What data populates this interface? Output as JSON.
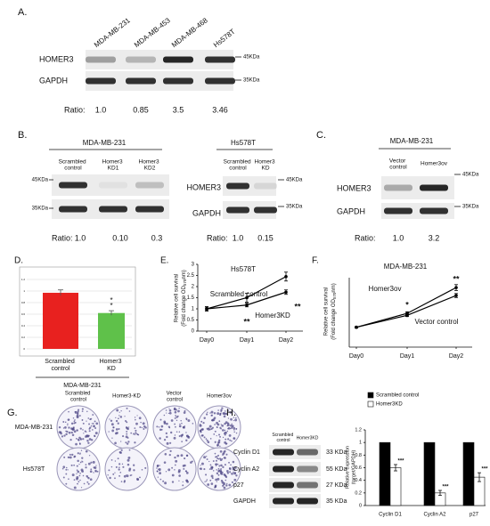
{
  "blot_a": {
    "panel": "A.",
    "lanes": [
      "MDA-MB-231",
      "MDA-MB-453",
      "MDA-MB-468",
      "Hs578T"
    ],
    "rows": [
      "HOMER3",
      "GAPDH"
    ],
    "markers": [
      "45KDa",
      "35KDa"
    ],
    "ratio_label": "Ratio:",
    "ratios": [
      "1.0",
      "0.85",
      "3.5",
      "3.46"
    ]
  },
  "blot_b": {
    "panel": "B.",
    "left": {
      "group": "MDA-MB-231",
      "lanes": [
        "Scrambled control",
        "Homer3 KD1",
        "Homer3 KD2"
      ],
      "markers": [
        "45KDa",
        "35KDa"
      ],
      "ratio_label": "Ratio:",
      "ratios": [
        "1.0",
        "0.10",
        "0.3"
      ]
    },
    "right": {
      "group": "Hs578T",
      "lanes": [
        "Scrambled control",
        "Homer3 KD"
      ],
      "rows": [
        "HOMER3",
        "GAPDH"
      ],
      "markers": [
        "45KDa",
        "35KDa"
      ],
      "ratio_label": "Ratio:",
      "ratios": [
        "1.0",
        "0.15"
      ]
    }
  },
  "blot_c": {
    "panel": "C.",
    "group": "MDA-MB-231",
    "lanes": [
      "Vector control",
      "Homer3ov"
    ],
    "rows": [
      "HOMER3",
      "GAPDH"
    ],
    "markers": [
      "45KDa",
      "35KDa"
    ],
    "ratio_label": "Ratio:",
    "ratios": [
      "1.0",
      "3.2"
    ]
  },
  "colony_g": {
    "panel": "G.",
    "columns": [
      "Scrambled control",
      "Homer3-KD",
      "Vector control",
      "Homer3ov"
    ],
    "rows": [
      "MDA-MB-231",
      "Hs578T"
    ]
  },
  "blot_h": {
    "panel": "H.",
    "lanes": [
      "Scrambled control",
      "Homer3KD"
    ],
    "rows": [
      "Cyclin D1",
      "Cyclin A2",
      "p27",
      "GAPDH"
    ],
    "sizes": [
      "33 KDa",
      "55 KDa",
      "27 KDa",
      "35 KDa"
    ]
  },
  "chart_data": [
    {
      "type": "bar",
      "panel": "D.",
      "categories": [
        "Scrambled control",
        "Homer3 KD"
      ],
      "values": [
        0.97,
        0.62
      ],
      "errors": [
        0.05,
        0.04
      ],
      "colors": [
        "#e8211f",
        "#5fc14a"
      ],
      "ylim": [
        0,
        1.2
      ],
      "yticks": [
        0,
        0.2,
        0.4,
        0.6,
        0.8,
        1,
        1.2
      ],
      "grid": true,
      "group": "MDA-MB-231",
      "annotations": [
        "*",
        "*"
      ]
    },
    {
      "type": "line",
      "panel": "E.",
      "title": "Hs578T",
      "categories": [
        "Day0",
        "Day1",
        "Day2"
      ],
      "ylabel": "Relative cell survival",
      "ylabel2": "(Fold change OD570nm)",
      "ylim": [
        0,
        3
      ],
      "yticks": [
        0,
        0.5,
        1,
        1.5,
        2,
        2.5,
        3
      ],
      "series": [
        {
          "name": "Scrambled control",
          "color": "#000000",
          "values": [
            1,
            1.5,
            2.45
          ],
          "errors": [
            0.1,
            0.2,
            0.2
          ]
        },
        {
          "name": "Homer3KD",
          "color": "#000000",
          "values": [
            1,
            1.17,
            1.75
          ],
          "errors": [
            0.08,
            0.08,
            0.1
          ]
        }
      ],
      "annotations": [
        "**",
        "**"
      ]
    },
    {
      "type": "line",
      "panel": "F.",
      "title": "MDA-MB-231",
      "categories": [
        "Day0",
        "Day1",
        "Day2"
      ],
      "ylabel": "Relative cell survival",
      "ylabel2": "(Fold change OD570nm)",
      "ylim": [
        0,
        3.5
      ],
      "series": [
        {
          "name": "Homer3ov",
          "color": "#000000",
          "values": [
            1,
            1.7,
            3.0
          ],
          "errors": [
            0.03,
            0.08,
            0.15
          ]
        },
        {
          "name": "Vector control",
          "color": "#000000",
          "values": [
            1,
            1.6,
            2.6
          ],
          "errors": [
            0.03,
            0.06,
            0.1
          ]
        }
      ],
      "annotations": [
        "*",
        "**"
      ]
    },
    {
      "type": "grouped_bar",
      "panel": "H.",
      "categories": [
        "Cyclin D1",
        "Cyclin A2",
        "p27"
      ],
      "ylabel": "Relative expression",
      "ylabel2": "(target/GAPDH)",
      "ylim": [
        0,
        1.2
      ],
      "yticks": [
        0,
        0.2,
        0.4,
        0.6,
        0.8,
        1,
        1.2
      ],
      "series": [
        {
          "name": "Scrambled control",
          "color": "#000000",
          "values": [
            1,
            1,
            1
          ]
        },
        {
          "name": "Homer3KD",
          "color": "#ffffff",
          "values": [
            0.6,
            0.2,
            0.45
          ],
          "errors": [
            0.05,
            0.04,
            0.07
          ]
        }
      ],
      "annotations": [
        "***",
        "***",
        "***"
      ]
    }
  ]
}
